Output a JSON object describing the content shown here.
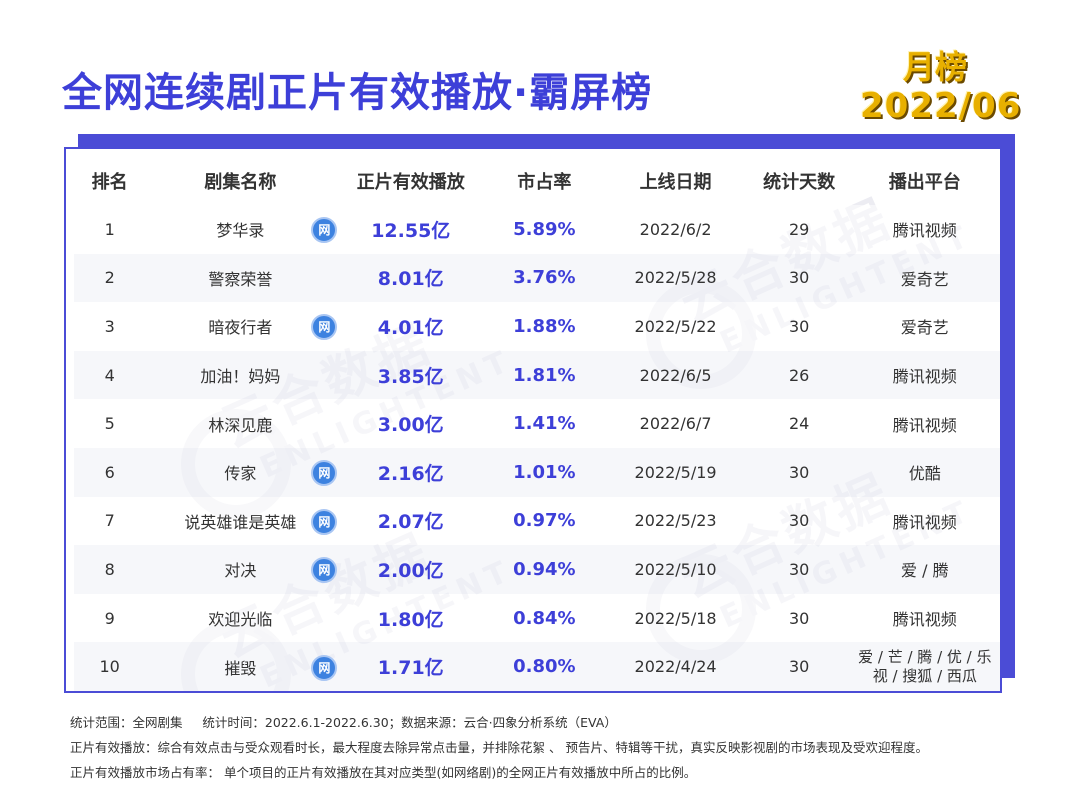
{
  "title": "全网连续剧正片有效播放·霸屏榜",
  "badge": {
    "line1": "月榜",
    "line2": "2022/06"
  },
  "watermark": {
    "cn": "云合数据",
    "en": "ENLIGHTENT"
  },
  "columns": [
    "排名",
    "剧集名称",
    "正片有效播放",
    "市占率",
    "上线日期",
    "统计天数",
    "播出平台"
  ],
  "net_icon_label": "网",
  "rows": [
    {
      "rank": "1",
      "name": "梦华录",
      "net": true,
      "plays": "12.55亿",
      "share": "5.89%",
      "date": "2022/6/2",
      "days": "29",
      "platform": "腾讯视频"
    },
    {
      "rank": "2",
      "name": "警察荣誉",
      "net": false,
      "plays": "8.01亿",
      "share": "3.76%",
      "date": "2022/5/28",
      "days": "30",
      "platform": "爱奇艺"
    },
    {
      "rank": "3",
      "name": "暗夜行者",
      "net": true,
      "plays": "4.01亿",
      "share": "1.88%",
      "date": "2022/5/22",
      "days": "30",
      "platform": "爱奇艺"
    },
    {
      "rank": "4",
      "name": "加油！妈妈",
      "net": false,
      "plays": "3.85亿",
      "share": "1.81%",
      "date": "2022/6/5",
      "days": "26",
      "platform": "腾讯视频"
    },
    {
      "rank": "5",
      "name": "林深见鹿",
      "net": false,
      "plays": "3.00亿",
      "share": "1.41%",
      "date": "2022/6/7",
      "days": "24",
      "platform": "腾讯视频"
    },
    {
      "rank": "6",
      "name": "传家",
      "net": true,
      "plays": "2.16亿",
      "share": "1.01%",
      "date": "2022/5/19",
      "days": "30",
      "platform": "优酷"
    },
    {
      "rank": "7",
      "name": "说英雄谁是英雄",
      "net": true,
      "plays": "2.07亿",
      "share": "0.97%",
      "date": "2022/5/23",
      "days": "30",
      "platform": "腾讯视频"
    },
    {
      "rank": "8",
      "name": "对决",
      "net": true,
      "plays": "2.00亿",
      "share": "0.94%",
      "date": "2022/5/10",
      "days": "30",
      "platform": "爱 / 腾"
    },
    {
      "rank": "9",
      "name": "欢迎光临",
      "net": false,
      "plays": "1.80亿",
      "share": "0.84%",
      "date": "2022/5/18",
      "days": "30",
      "platform": "腾讯视频"
    },
    {
      "rank": "10",
      "name": "摧毁",
      "net": true,
      "plays": "1.71亿",
      "share": "0.80%",
      "date": "2022/4/24",
      "days": "30",
      "platform": "爱 / 芒 / 腾 / 优 / 乐\n视 / 搜狐 / 西瓜"
    }
  ],
  "notes": [
    "统计范围：全网剧集     统计时间：2022.6.1-2022.6.30；数据来源：云合·四象分析系统（EVA）",
    "正片有效播放：综合有效点击与受众观看时长，最大程度去除异常点击量，并排除花絮 、 预告片、特辑等干扰，真实反映影视剧的市场表现及受欢迎程度。",
    "正片有效播放市场占有率： 单个项目的正片有效播放在其对应类型(如网络剧)的全网正片有效播放中所占的比例。"
  ]
}
